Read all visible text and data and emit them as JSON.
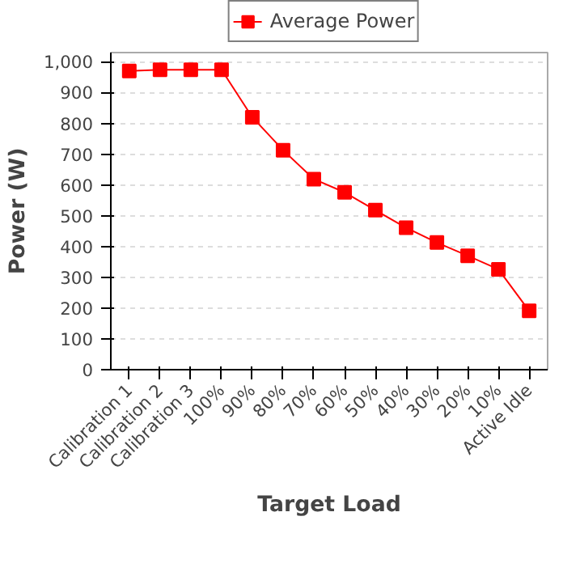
{
  "chart_data": {
    "type": "line",
    "xlabel": "Target Load",
    "ylabel": "Power (W)",
    "categories": [
      "Calibration 1",
      "Calibration 2",
      "Calibration 3",
      "100%",
      "90%",
      "80%",
      "70%",
      "60%",
      "50%",
      "40%",
      "30%",
      "20%",
      "10%",
      "Active Idle"
    ],
    "series": [
      {
        "name": "Average Power",
        "color": "#ff0000",
        "values": [
          970,
          974,
          974,
          974,
          820,
          713,
          619,
          576,
          518,
          461,
          413,
          370,
          326,
          191
        ]
      }
    ],
    "ylim": [
      0,
      1030
    ],
    "yticks": [
      0,
      100,
      200,
      300,
      400,
      500,
      600,
      700,
      800,
      900,
      {
        "value": 1000,
        "label": "1,000"
      }
    ],
    "grid": "y",
    "legend": "top",
    "marker": "square",
    "line_style": "solid"
  }
}
